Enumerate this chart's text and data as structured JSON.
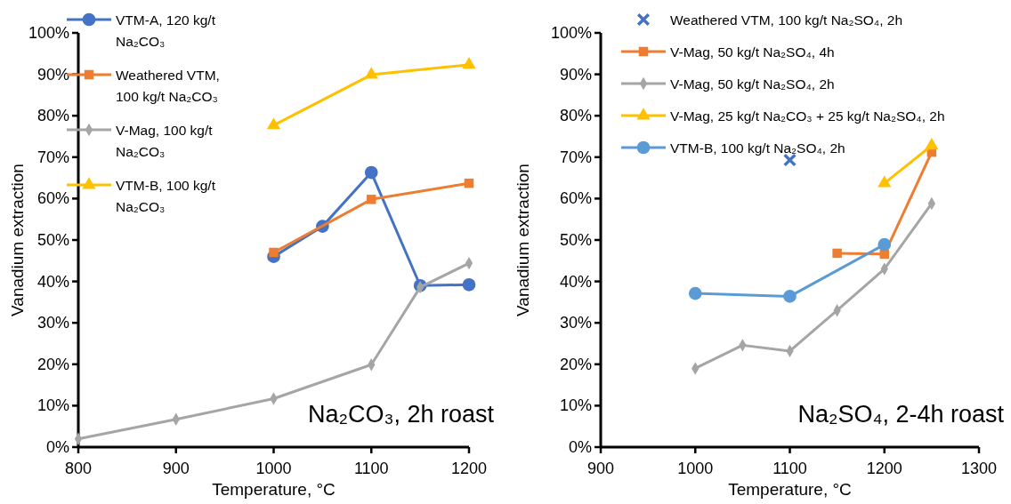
{
  "chart_data": [
    {
      "type": "line",
      "xlabel": "Temperature, °C",
      "ylabel": "Vanadium extraction",
      "xlim": [
        800,
        1200
      ],
      "xticks": [
        800,
        900,
        1000,
        1100,
        1200
      ],
      "ylim": [
        0,
        100
      ],
      "yticks": [
        {
          "value": 0,
          "label": "0%"
        },
        {
          "value": 10,
          "label": "10%"
        },
        {
          "value": 20,
          "label": "20%"
        },
        {
          "value": 30,
          "label": "30%"
        },
        {
          "value": 40,
          "label": "40%"
        },
        {
          "value": 50,
          "label": "50%"
        },
        {
          "value": 60,
          "label": "60%"
        },
        {
          "value": 70,
          "label": "70%"
        },
        {
          "value": 80,
          "label": "80%"
        },
        {
          "value": 90,
          "label": "90%"
        },
        {
          "value": 100,
          "label": "100%"
        }
      ],
      "legend": "top left",
      "annotations": [
        "Na₂CO₃, 2h roast"
      ],
      "series": [
        {
          "name": "VTM-A, 120 kg/t Na₂CO₃",
          "color": "#4472c4",
          "marker": "circle",
          "x": [
            1000,
            1050,
            1100,
            1150,
            1200
          ],
          "values": [
            46,
            53.3,
            66.3,
            39,
            39.2
          ]
        },
        {
          "name": "Weathered VTM, 100 kg/t Na₂CO₃",
          "color": "#ed7d31",
          "marker": "square",
          "x": [
            1000,
            1100,
            1200
          ],
          "values": [
            47,
            59.8,
            63.7
          ]
        },
        {
          "name": "V-Mag, 100 kg/t Na₂CO₃",
          "color": "#a5a5a5",
          "marker": "diamond",
          "x": [
            800,
            900,
            1000,
            1100,
            1150,
            1200
          ],
          "values": [
            2,
            6.7,
            11.7,
            19.9,
            38.6,
            44.4
          ]
        },
        {
          "name": "VTM-B, 100 kg/t Na₂CO₃",
          "color": "#ffc000",
          "marker": "triangle",
          "x": [
            1000,
            1100,
            1200
          ],
          "values": [
            77.7,
            89.9,
            92.3
          ]
        }
      ]
    },
    {
      "type": "line",
      "xlabel": "Temperature, °C",
      "ylabel": "Vanadium extraction",
      "xlim": [
        900,
        1300
      ],
      "xticks": [
        900,
        1000,
        1100,
        1200,
        1300
      ],
      "ylim": [
        0,
        100
      ],
      "yticks": [
        {
          "value": 0,
          "label": "0%"
        },
        {
          "value": 10,
          "label": "10%"
        },
        {
          "value": 20,
          "label": "20%"
        },
        {
          "value": 30,
          "label": "30%"
        },
        {
          "value": 40,
          "label": "40%"
        },
        {
          "value": 50,
          "label": "50%"
        },
        {
          "value": 60,
          "label": "60%"
        },
        {
          "value": 70,
          "label": "70%"
        },
        {
          "value": 80,
          "label": "80%"
        },
        {
          "value": 90,
          "label": "90%"
        },
        {
          "value": 100,
          "label": "100%"
        }
      ],
      "legend": "top",
      "annotations": [
        "Na₂SO₄, 2-4h roast"
      ],
      "series": [
        {
          "name": "Weathered VTM, 100 kg/t Na₂SO₄, 2h",
          "type": "scatter",
          "color": "#4472c4",
          "marker": "cross",
          "x": [
            1100
          ],
          "values": [
            69.3
          ]
        },
        {
          "name": "V-Mag, 50 kg/t Na₂SO₄, 4h",
          "color": "#ed7d31",
          "marker": "square",
          "x": [
            1150,
            1200,
            1250
          ],
          "values": [
            46.8,
            46.6,
            71.2
          ]
        },
        {
          "name": "V-Mag, 50 kg/t Na₂SO₄, 2h",
          "color": "#a5a5a5",
          "marker": "diamond",
          "x": [
            1000,
            1050,
            1100,
            1150,
            1200,
            1250
          ],
          "values": [
            19,
            24.6,
            23.2,
            33,
            43,
            58.8
          ]
        },
        {
          "name": "V-Mag, 25 kg/t Na₂CO₃ + 25 kg/t Na₂SO₄, 2h",
          "color": "#ffc000",
          "marker": "triangle",
          "x": [
            1200,
            1250
          ],
          "values": [
            63.7,
            72.8
          ]
        },
        {
          "name": "VTM-B, 100 kg/t Na₂SO₄, 2h",
          "color": "#5b9bd5",
          "marker": "circle",
          "x": [
            1000,
            1100,
            1200
          ],
          "values": [
            37.1,
            36.4,
            48.9
          ]
        }
      ]
    }
  ]
}
